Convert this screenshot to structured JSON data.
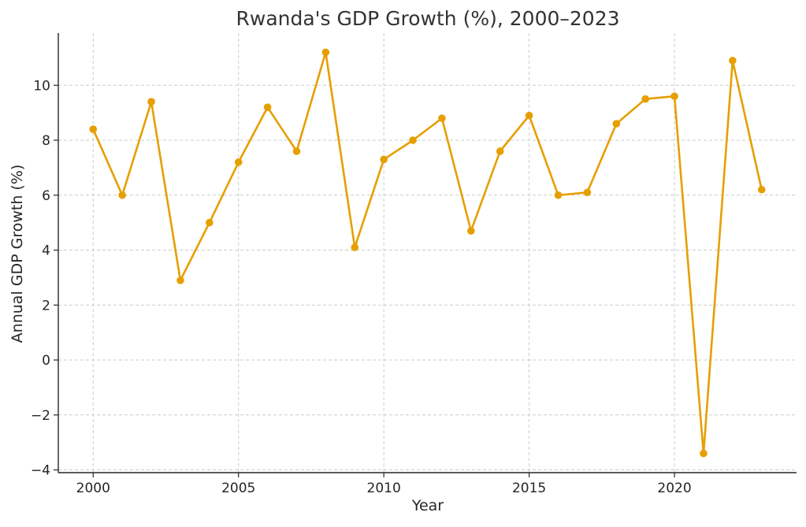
{
  "chart_data": {
    "type": "line",
    "title": "Rwanda's GDP Growth (%), 2000–2023",
    "xlabel": "Year",
    "ylabel": "Annual GDP Growth (%)",
    "x": [
      2000,
      2001,
      2002,
      2003,
      2004,
      2005,
      2006,
      2007,
      2008,
      2009,
      2010,
      2011,
      2012,
      2013,
      2014,
      2015,
      2016,
      2017,
      2018,
      2019,
      2020,
      2021,
      2022,
      2023
    ],
    "series": [
      {
        "values": [
          8.4,
          6.0,
          9.4,
          2.9,
          5.0,
          7.2,
          9.2,
          7.6,
          11.2,
          4.1,
          7.3,
          8.0,
          8.8,
          4.7,
          7.6,
          8.9,
          6.0,
          6.1,
          8.6,
          9.5,
          9.6,
          -3.4,
          10.9,
          6.2
        ],
        "color": "#E69F00"
      }
    ],
    "xlim": [
      1998.8,
      2024.2
    ],
    "ylim": [
      -4.1,
      11.9
    ],
    "x_ticks": [
      2000,
      2005,
      2010,
      2015,
      2020
    ],
    "x_tick_labels": [
      "2000",
      "2005",
      "2010",
      "2015",
      "2020"
    ],
    "y_ticks": [
      -4,
      -2,
      0,
      2,
      4,
      6,
      8,
      10
    ],
    "y_tick_labels": [
      "−4",
      "−2",
      "0",
      "2",
      "4",
      "6",
      "8",
      "10"
    ],
    "grid": true,
    "legend": "none",
    "marker": "circle"
  }
}
